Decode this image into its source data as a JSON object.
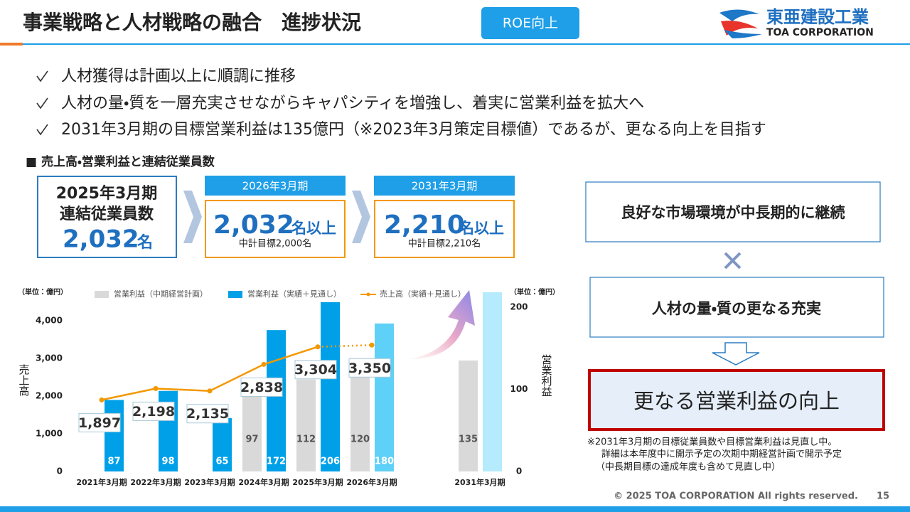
{
  "header": {
    "title": "事業戦略と人材戦略の融合　進捗状況",
    "badge": "ROE向上",
    "logo_ja": "東亜建設工業",
    "logo_en": "TOA CORPORATION"
  },
  "bullets": [
    "人材獲得は計画以上に順調に推移",
    "人材の量・質を一層充実させながらキャパシティを増強し、着実に営業利益を拡大へ",
    "2031年3月期の目標営業利益は135億円（※2023年3月策定目標値）であるが、更なる向上を目指す"
  ],
  "section_title": "■ 売上高・営業利益と連結従業員数",
  "headcount": {
    "period": "2025年3月期",
    "label": "連結従業員数",
    "value": "2,032",
    "unit": "名"
  },
  "targets": [
    {
      "period": "2026年3月期",
      "value": "2,032",
      "unit": "名以上",
      "note": "中計目標2,000名"
    },
    {
      "period": "2031年3月期",
      "value": "2,210",
      "unit": "名以上",
      "note": "中計目標2,210名"
    }
  ],
  "flow": [
    "良好な市場環境が中長期的に継続",
    "人材の量・質の更なる充実",
    "更なる営業利益の向上"
  ],
  "notes": [
    "※2031年3月期の目標従業員数や目標営業利益は見直し中。",
    "詳細は本年度中に開示予定の次期中期経営計画で開示予定",
    "（中長期目標の達成年度も含めて見直し中）"
  ],
  "footer": {
    "copyright": "© 2025 TOA CORPORATION  All rights reserved.",
    "page": "15"
  },
  "chart_data": {
    "type": "combo",
    "y_label": "売上高",
    "y2_label": "営業利益",
    "y_unit": "（単位：億円）",
    "y2_unit": "（単位：億円）",
    "categories": [
      "2021年3月期",
      "2022年3月期",
      "2023年3月期",
      "2024年3月期",
      "2025年3月期",
      "2026年3月期",
      "2031年3月期"
    ],
    "ylim": [
      0,
      4750
    ],
    "yticks": [
      0,
      {
        "value": 1000,
        "label": "1,000"
      },
      {
        "value": 2000,
        "label": "2,000"
      },
      {
        "value": 3000,
        "label": "3,000"
      },
      {
        "value": 4000,
        "label": "4,000"
      }
    ],
    "y2lim": [
      0,
      218
    ],
    "y2ticks": [
      0,
      100,
      200
    ],
    "series": [
      {
        "name": "営業利益（中期経営計画）",
        "type": "bar",
        "axis": "y2",
        "color": "#d9d9d9",
        "label_color": "#555555",
        "values": [
          null,
          null,
          null,
          97,
          112,
          120,
          135
        ]
      },
      {
        "name": "営業利益（実績＋見通し）",
        "type": "bar",
        "axis": "y2",
        "color": "#00a0e9",
        "colors": [
          "#00a0e9",
          "#00a0e9",
          "#00a0e9",
          "#00a0e9",
          "#00a0e9",
          "#5fd0f7",
          "#b5ebfc"
        ],
        "label_color": "#ffffff",
        "values": [
          87,
          98,
          65,
          172,
          206,
          180,
          218
        ],
        "value_labels": [
          "87",
          "98",
          "65",
          "172",
          "206",
          "180",
          null
        ]
      },
      {
        "name": "売上高（実績＋見通し）",
        "type": "line",
        "axis": "y",
        "color": "#f39800",
        "dotted_from_index": 4,
        "values": [
          1897,
          2198,
          2135,
          2838,
          3304,
          3350,
          null
        ],
        "value_labels": [
          "1,897",
          "2,198",
          "2,135",
          "2,838",
          "3,304",
          "3,350",
          null
        ]
      }
    ],
    "legend": "top",
    "grid": false
  }
}
